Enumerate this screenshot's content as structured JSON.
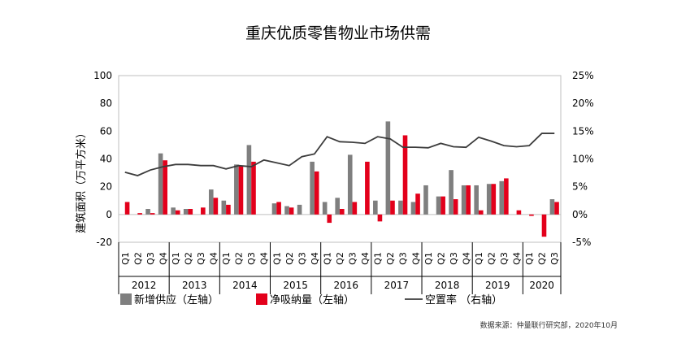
{
  "chart_data": {
    "type": "bar",
    "title": "重庆优质零售物业市场供需",
    "ylabel": "建筑面积（万平方米）",
    "ylim": [
      -20,
      100
    ],
    "y2lim": [
      -5,
      25
    ],
    "yticks": [
      "100",
      "80",
      "60",
      "40",
      "20",
      "0",
      "-20"
    ],
    "y2ticks": [
      "25%",
      "20%",
      "15%",
      "10%",
      "5%",
      "0%",
      "-5%"
    ],
    "quarters": [
      "Q1",
      "Q2",
      "Q3",
      "Q4",
      "Q1",
      "Q2",
      "Q3",
      "Q4",
      "Q1",
      "Q2",
      "Q3",
      "Q4",
      "Q1",
      "Q2",
      "Q3",
      "Q4",
      "Q1",
      "Q2",
      "Q3",
      "Q4",
      "Q1",
      "Q2",
      "Q3",
      "Q4",
      "Q1",
      "Q2",
      "Q3",
      "Q4",
      "Q1",
      "Q2",
      "Q3",
      "Q4",
      "Q1",
      "Q2",
      "Q3"
    ],
    "years": [
      {
        "label": "2012",
        "quarters": 4
      },
      {
        "label": "2013",
        "quarters": 4
      },
      {
        "label": "2014",
        "quarters": 4
      },
      {
        "label": "2015",
        "quarters": 4
      },
      {
        "label": "2016",
        "quarters": 4
      },
      {
        "label": "2017",
        "quarters": 4
      },
      {
        "label": "2018",
        "quarters": 4
      },
      {
        "label": "2019",
        "quarters": 4
      },
      {
        "label": "2020",
        "quarters": 3
      }
    ],
    "series": [
      {
        "name": "新增供应（左轴）",
        "type": "bar",
        "axis": "left",
        "color": "#7f7f7f",
        "values": [
          0,
          0,
          4,
          44,
          5,
          4,
          0,
          18,
          10,
          36,
          50,
          0,
          8,
          6,
          7,
          38,
          9,
          12,
          43,
          0,
          10,
          67,
          10,
          9,
          21,
          13,
          32,
          21,
          21,
          22,
          24,
          0,
          0,
          0,
          11
        ]
      },
      {
        "name": "净吸纳量（左轴）",
        "type": "bar",
        "axis": "left",
        "color": "#e3001b",
        "values": [
          9,
          1,
          1,
          39,
          3,
          4,
          5,
          12,
          7,
          35,
          38,
          0,
          9,
          5,
          0,
          31,
          -6,
          4,
          9,
          38,
          -5,
          10,
          57,
          15,
          0,
          13,
          11,
          21,
          3,
          22,
          26,
          3,
          -1,
          -16,
          9
        ]
      },
      {
        "name": "空置率 （右轴）",
        "type": "line",
        "axis": "right",
        "color": "#3c3c3c",
        "values": [
          7.6,
          7.0,
          8.0,
          8.6,
          9.0,
          9.0,
          8.8,
          8.8,
          8.2,
          8.8,
          8.6,
          9.8,
          9.3,
          8.8,
          10.4,
          10.9,
          14.0,
          13.1,
          13.0,
          12.8,
          14.0,
          13.6,
          12.1,
          12.1,
          12.0,
          12.8,
          12.2,
          12.1,
          13.9,
          13.2,
          12.4,
          12.2,
          12.4,
          14.6,
          14.6
        ]
      }
    ],
    "legend": {
      "position": "bottom"
    },
    "source": "数据来源：仲量联行研究部，2020年10月"
  }
}
